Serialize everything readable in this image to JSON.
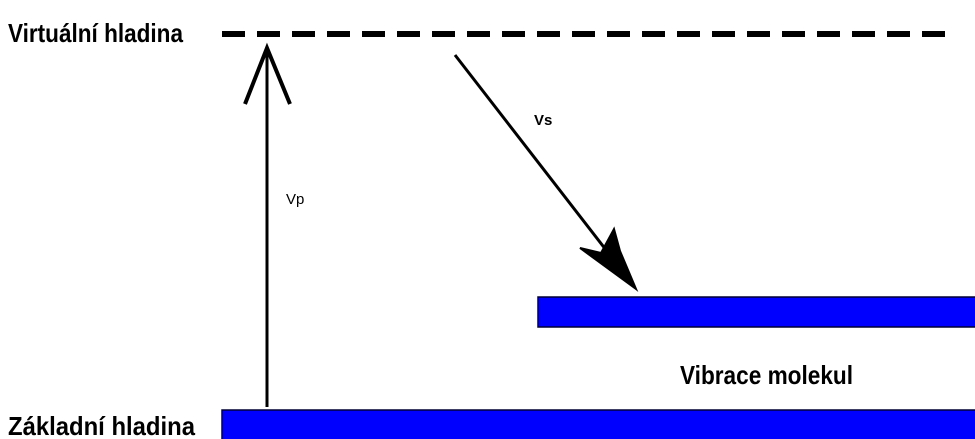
{
  "levels": {
    "virtual": "Virtuální hladina",
    "ground": "Základní hladina",
    "vibration": "Vibrace molekul"
  },
  "arrows": {
    "pump": "Vp",
    "scattered": "Vs"
  }
}
